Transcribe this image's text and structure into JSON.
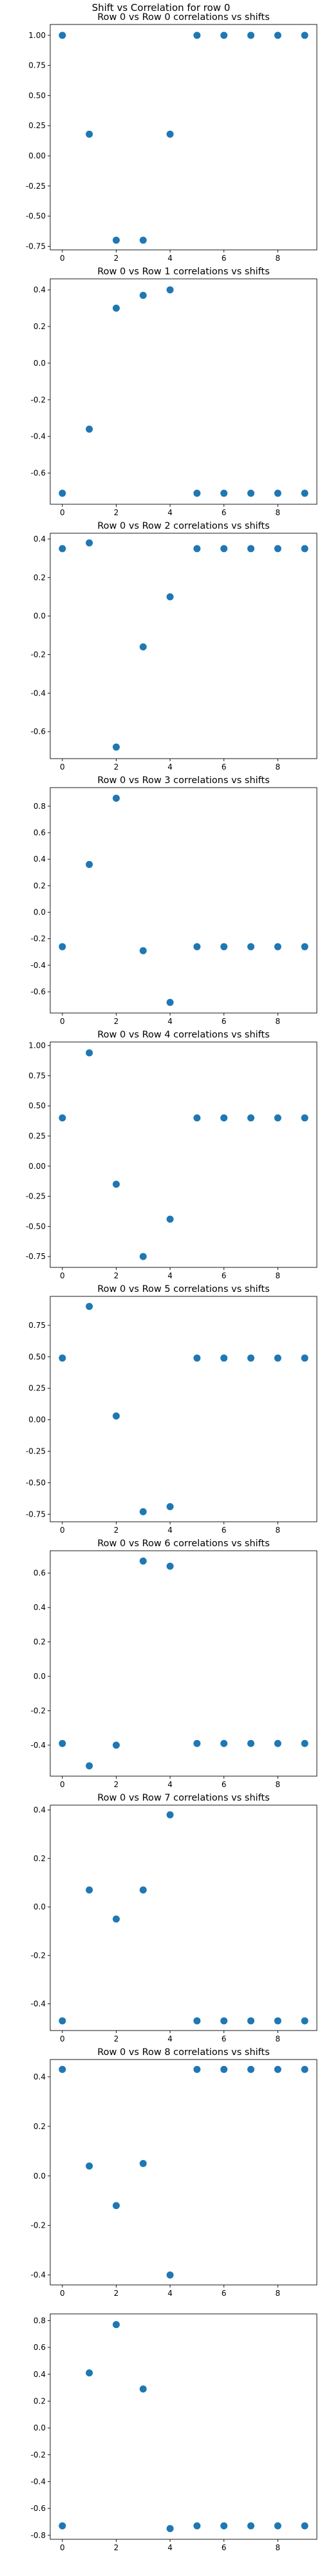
{
  "figure": {
    "title": "Shift vs Correlation for row 0"
  },
  "colors": {
    "point": "#1f77b4",
    "axis": "#000000"
  },
  "chart_data": [
    {
      "type": "scatter",
      "title": "Row 0 vs Row 0 correlations vs shifts",
      "x": [
        0,
        1,
        2,
        3,
        4,
        5,
        6,
        7,
        8,
        9
      ],
      "y": [
        1.0,
        0.18,
        -0.7,
        -0.7,
        0.18,
        1.0,
        1.0,
        1.0,
        1.0,
        1.0
      ],
      "ylim": [
        -0.78,
        1.09
      ],
      "xlim": [
        -0.45,
        9.45
      ],
      "xticks": [
        0,
        2,
        4,
        6,
        8
      ],
      "yticks": [
        -0.75,
        -0.5,
        -0.25,
        0.0,
        0.25,
        0.5,
        0.75,
        1.0
      ],
      "ytick_labels": [
        "-0.75",
        "-0.50",
        "-0.25",
        "0.00",
        "0.25",
        "0.50",
        "0.75",
        "1.00"
      ]
    },
    {
      "type": "scatter",
      "title": "Row 0 vs Row 1 correlations vs shifts",
      "x": [
        0,
        1,
        2,
        3,
        4,
        5,
        6,
        7,
        8,
        9
      ],
      "y": [
        -0.71,
        -0.36,
        0.3,
        0.37,
        0.4,
        -0.71,
        -0.71,
        -0.71,
        -0.71,
        -0.71
      ],
      "ylim": [
        -0.77,
        0.46
      ],
      "xlim": [
        -0.45,
        9.45
      ],
      "xticks": [
        0,
        2,
        4,
        6,
        8
      ],
      "yticks": [
        -0.6,
        -0.4,
        -0.2,
        0.0,
        0.2,
        0.4
      ],
      "ytick_labels": [
        "-0.6",
        "-0.4",
        "-0.2",
        "0.0",
        "0.2",
        "0.4"
      ]
    },
    {
      "type": "scatter",
      "title": "Row 0 vs Row 2 correlations vs shifts",
      "x": [
        0,
        1,
        2,
        3,
        4,
        5,
        6,
        7,
        8,
        9
      ],
      "y": [
        0.35,
        0.38,
        -0.68,
        -0.16,
        0.1,
        0.35,
        0.35,
        0.35,
        0.35,
        0.35
      ],
      "ylim": [
        -0.74,
        0.43
      ],
      "xlim": [
        -0.45,
        9.45
      ],
      "xticks": [
        0,
        2,
        4,
        6,
        8
      ],
      "yticks": [
        -0.6,
        -0.4,
        -0.2,
        0.0,
        0.2,
        0.4
      ],
      "ytick_labels": [
        "-0.6",
        "-0.4",
        "-0.2",
        "0.0",
        "0.2",
        "0.4"
      ]
    },
    {
      "type": "scatter",
      "title": "Row 0 vs Row 3 correlations vs shifts",
      "x": [
        0,
        1,
        2,
        3,
        4,
        5,
        6,
        7,
        8,
        9
      ],
      "y": [
        -0.26,
        0.36,
        0.86,
        -0.29,
        -0.68,
        -0.26,
        -0.26,
        -0.26,
        -0.26,
        -0.26
      ],
      "ylim": [
        -0.76,
        0.94
      ],
      "xlim": [
        -0.45,
        9.45
      ],
      "xticks": [
        0,
        2,
        4,
        6,
        8
      ],
      "yticks": [
        -0.6,
        -0.4,
        -0.2,
        0.0,
        0.2,
        0.4,
        0.6,
        0.8
      ],
      "ytick_labels": [
        "-0.6",
        "-0.4",
        "-0.2",
        "0.0",
        "0.2",
        "0.4",
        "0.6",
        "0.8"
      ]
    },
    {
      "type": "scatter",
      "title": "Row 0 vs Row 4 correlations vs shifts",
      "x": [
        0,
        1,
        2,
        3,
        4,
        5,
        6,
        7,
        8,
        9
      ],
      "y": [
        0.4,
        0.94,
        -0.15,
        -0.75,
        -0.44,
        0.4,
        0.4,
        0.4,
        0.4,
        0.4
      ],
      "ylim": [
        -0.84,
        1.03
      ],
      "xlim": [
        -0.45,
        9.45
      ],
      "xticks": [
        0,
        2,
        4,
        6,
        8
      ],
      "yticks": [
        -0.75,
        -0.5,
        -0.25,
        0.0,
        0.25,
        0.5,
        0.75,
        1.0
      ],
      "ytick_labels": [
        "-0.75",
        "-0.50",
        "-0.25",
        "0.00",
        "0.25",
        "0.50",
        "0.75",
        "1.00"
      ]
    },
    {
      "type": "scatter",
      "title": "Row 0 vs Row 5 correlations vs shifts",
      "x": [
        0,
        1,
        2,
        3,
        4,
        5,
        6,
        7,
        8,
        9
      ],
      "y": [
        0.49,
        0.9,
        0.03,
        -0.73,
        -0.69,
        0.49,
        0.49,
        0.49,
        0.49,
        0.49
      ],
      "ylim": [
        -0.81,
        0.98
      ],
      "xlim": [
        -0.45,
        9.45
      ],
      "xticks": [
        0,
        2,
        4,
        6,
        8
      ],
      "yticks": [
        -0.75,
        -0.5,
        -0.25,
        0.0,
        0.25,
        0.5,
        0.75
      ],
      "ytick_labels": [
        "-0.75",
        "-0.50",
        "-0.25",
        "0.00",
        "0.25",
        "0.50",
        "0.75"
      ]
    },
    {
      "type": "scatter",
      "title": "Row 0 vs Row 6 correlations vs shifts",
      "x": [
        0,
        1,
        2,
        3,
        4,
        5,
        6,
        7,
        8,
        9
      ],
      "y": [
        -0.39,
        -0.52,
        -0.4,
        0.67,
        0.64,
        -0.39,
        -0.39,
        -0.39,
        -0.39,
        -0.39
      ],
      "ylim": [
        -0.58,
        0.73
      ],
      "xlim": [
        -0.45,
        9.45
      ],
      "xticks": [
        0,
        2,
        4,
        6,
        8
      ],
      "yticks": [
        -0.4,
        -0.2,
        0.0,
        0.2,
        0.4,
        0.6
      ],
      "ytick_labels": [
        "-0.4",
        "-0.2",
        "0.0",
        "0.2",
        "0.4",
        "0.6"
      ]
    },
    {
      "type": "scatter",
      "title": "Row 0 vs Row 7 correlations vs shifts",
      "x": [
        0,
        1,
        2,
        3,
        4,
        5,
        6,
        7,
        8,
        9
      ],
      "y": [
        -0.47,
        0.07,
        -0.05,
        0.07,
        0.38,
        -0.47,
        -0.47,
        -0.47,
        -0.47,
        -0.47
      ],
      "ylim": [
        -0.51,
        0.42
      ],
      "xlim": [
        -0.45,
        9.45
      ],
      "xticks": [
        0,
        2,
        4,
        6,
        8
      ],
      "yticks": [
        -0.4,
        -0.2,
        0.0,
        0.2,
        0.4
      ],
      "ytick_labels": [
        "-0.4",
        "-0.2",
        "0.0",
        "0.2",
        "0.4"
      ]
    },
    {
      "type": "scatter",
      "title": "Row 0 vs Row 8 correlations vs shifts",
      "x": [
        0,
        1,
        2,
        3,
        4,
        5,
        6,
        7,
        8,
        9
      ],
      "y": [
        0.43,
        0.04,
        -0.12,
        0.05,
        -0.4,
        0.43,
        0.43,
        0.43,
        0.43,
        0.43
      ],
      "ylim": [
        -0.44,
        0.47
      ],
      "xlim": [
        -0.45,
        9.45
      ],
      "xticks": [
        0,
        2,
        4,
        6,
        8
      ],
      "yticks": [
        -0.4,
        -0.2,
        0.0,
        0.2,
        0.4
      ],
      "ytick_labels": [
        "-0.4",
        "-0.2",
        "0.0",
        "0.2",
        "0.4"
      ]
    },
    {
      "type": "scatter",
      "title": "",
      "x": [
        0,
        1,
        2,
        3,
        4,
        5,
        6,
        7,
        8,
        9
      ],
      "y": [
        -0.73,
        0.41,
        0.77,
        0.29,
        -0.75,
        -0.73,
        -0.73,
        -0.73,
        -0.73,
        -0.73
      ],
      "ylim": [
        -0.83,
        0.85
      ],
      "xlim": [
        -0.45,
        9.45
      ],
      "xticks": [
        0,
        2,
        4,
        6,
        8
      ],
      "yticks": [
        -0.8,
        -0.6,
        -0.4,
        -0.2,
        0.0,
        0.2,
        0.4,
        0.6,
        0.8
      ],
      "ytick_labels": [
        "-0.8",
        "-0.6",
        "-0.4",
        "-0.2",
        "0.0",
        "0.2",
        "0.4",
        "0.6",
        "0.8"
      ]
    }
  ]
}
